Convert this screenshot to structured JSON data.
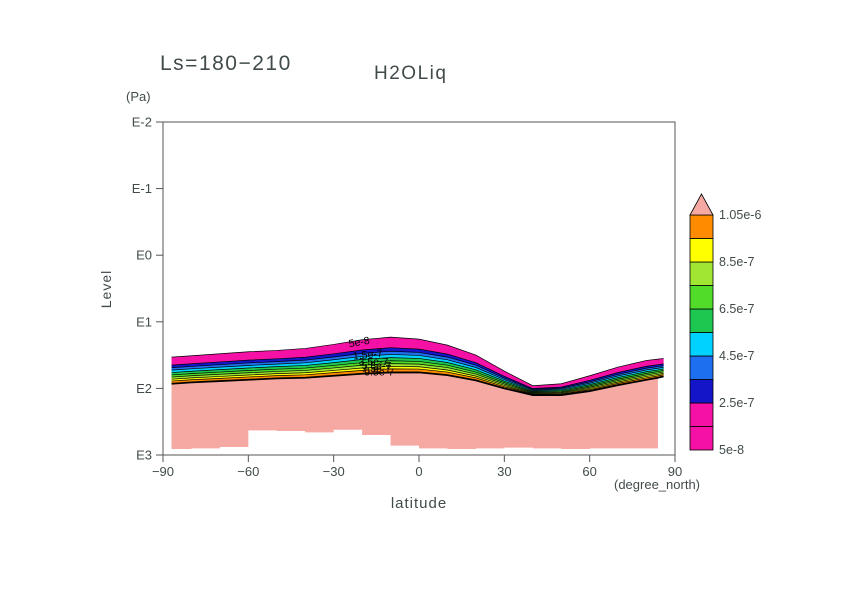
{
  "title_left": "Ls=180−210",
  "title_right": "H2OLiq",
  "axes": {
    "y_unit": "(Pa)",
    "y_label": "Level",
    "y_ticks": [
      "E-2",
      "E-1",
      "E0",
      "E1",
      "E2",
      "E3"
    ],
    "x_ticks": [
      "−90",
      "−60",
      "−30",
      "0",
      "30",
      "60",
      "90"
    ],
    "x_label": "latitude",
    "x_unit": "(degree_north)"
  },
  "colorbar": {
    "labels": [
      "5e-8",
      "2.5e-7",
      "4.5e-7",
      "6.5e-7",
      "8.5e-7",
      "1.05e-6"
    ],
    "segment_colors": [
      "#F511A5",
      "#F511A5",
      "#1414C8",
      "#1E6EF0",
      "#00D2FF",
      "#1EC850",
      "#50DC28",
      "#A0E632",
      "#FFFF00",
      "#FF8C00"
    ],
    "triangle_color": "#F5A9A2"
  },
  "chart_data": {
    "type": "filled-contour",
    "title": "H2OLiq, Ls=180-210",
    "x_axis": {
      "name": "latitude",
      "unit": "degree_north",
      "min": -90,
      "max": 90,
      "tick_step": 30
    },
    "y_axis": {
      "name": "Level",
      "unit": "Pa",
      "scale": "log10",
      "tick_exponents": [
        -2,
        -1,
        0,
        1,
        2,
        3
      ]
    },
    "labeled_contour_levels": [
      "5e-8",
      "2.5e-7",
      "4.5e-7",
      "6.5e-7",
      "8.5e-7",
      "1.05e-6"
    ],
    "lats": [
      -87,
      -80,
      -70,
      -60,
      -50,
      -40,
      -30,
      -20,
      -10,
      0,
      10,
      20,
      30,
      40,
      50,
      60,
      70,
      80,
      84,
      86
    ],
    "band_top_level": [
      1.53,
      1.51,
      1.48,
      1.45,
      1.43,
      1.4,
      1.34,
      1.27,
      1.23,
      1.26,
      1.35,
      1.5,
      1.74,
      1.96,
      1.93,
      1.81,
      1.68,
      1.58,
      1.56,
      1.55
    ],
    "band_thickness": [
      0.4,
      0.4,
      0.41,
      0.42,
      0.42,
      0.44,
      0.47,
      0.51,
      0.53,
      0.5,
      0.45,
      0.38,
      0.26,
      0.14,
      0.17,
      0.23,
      0.27,
      0.29,
      0.28,
      0.27
    ],
    "layer_fractions": [
      0.3,
      0.1,
      0.09,
      0.09,
      0.09,
      0.08,
      0.08,
      0.07,
      0.1
    ],
    "layer_colors": [
      "#F511A5",
      "#1414C8",
      "#1E6EF0",
      "#00D2FF",
      "#1EC850",
      "#50DC28",
      "#A0E632",
      "#FFFF00",
      "#FF8C00"
    ],
    "surface_region": {
      "color": "#F5A9A2",
      "end_index": 18,
      "bottom_level": [
        2.9,
        2.91,
        2.9,
        2.88,
        2.63,
        2.64,
        2.66,
        2.62,
        2.7,
        2.86,
        2.9,
        2.91,
        2.9,
        2.89,
        2.9,
        2.91,
        2.9,
        2.9,
        2.9,
        2.9
      ]
    },
    "contour_labels": [
      {
        "text": "5e-8",
        "lat": -21,
        "level": 1.31,
        "rot": -10
      },
      {
        "text": "1.5e-7",
        "lat": -18,
        "level": 1.5,
        "rot": -6
      },
      {
        "text": "3.5e-7",
        "lat": -16,
        "level": 1.6,
        "rot": 0
      },
      {
        "text": "5.5e-7",
        "lat": -15,
        "level": 1.66,
        "rot": 0
      },
      {
        "text": "7.5e-7",
        "lat": -15,
        "level": 1.71,
        "rot": 0
      },
      {
        "text": "9.5e-7",
        "lat": -14,
        "level": 1.76,
        "rot": 0
      }
    ]
  }
}
